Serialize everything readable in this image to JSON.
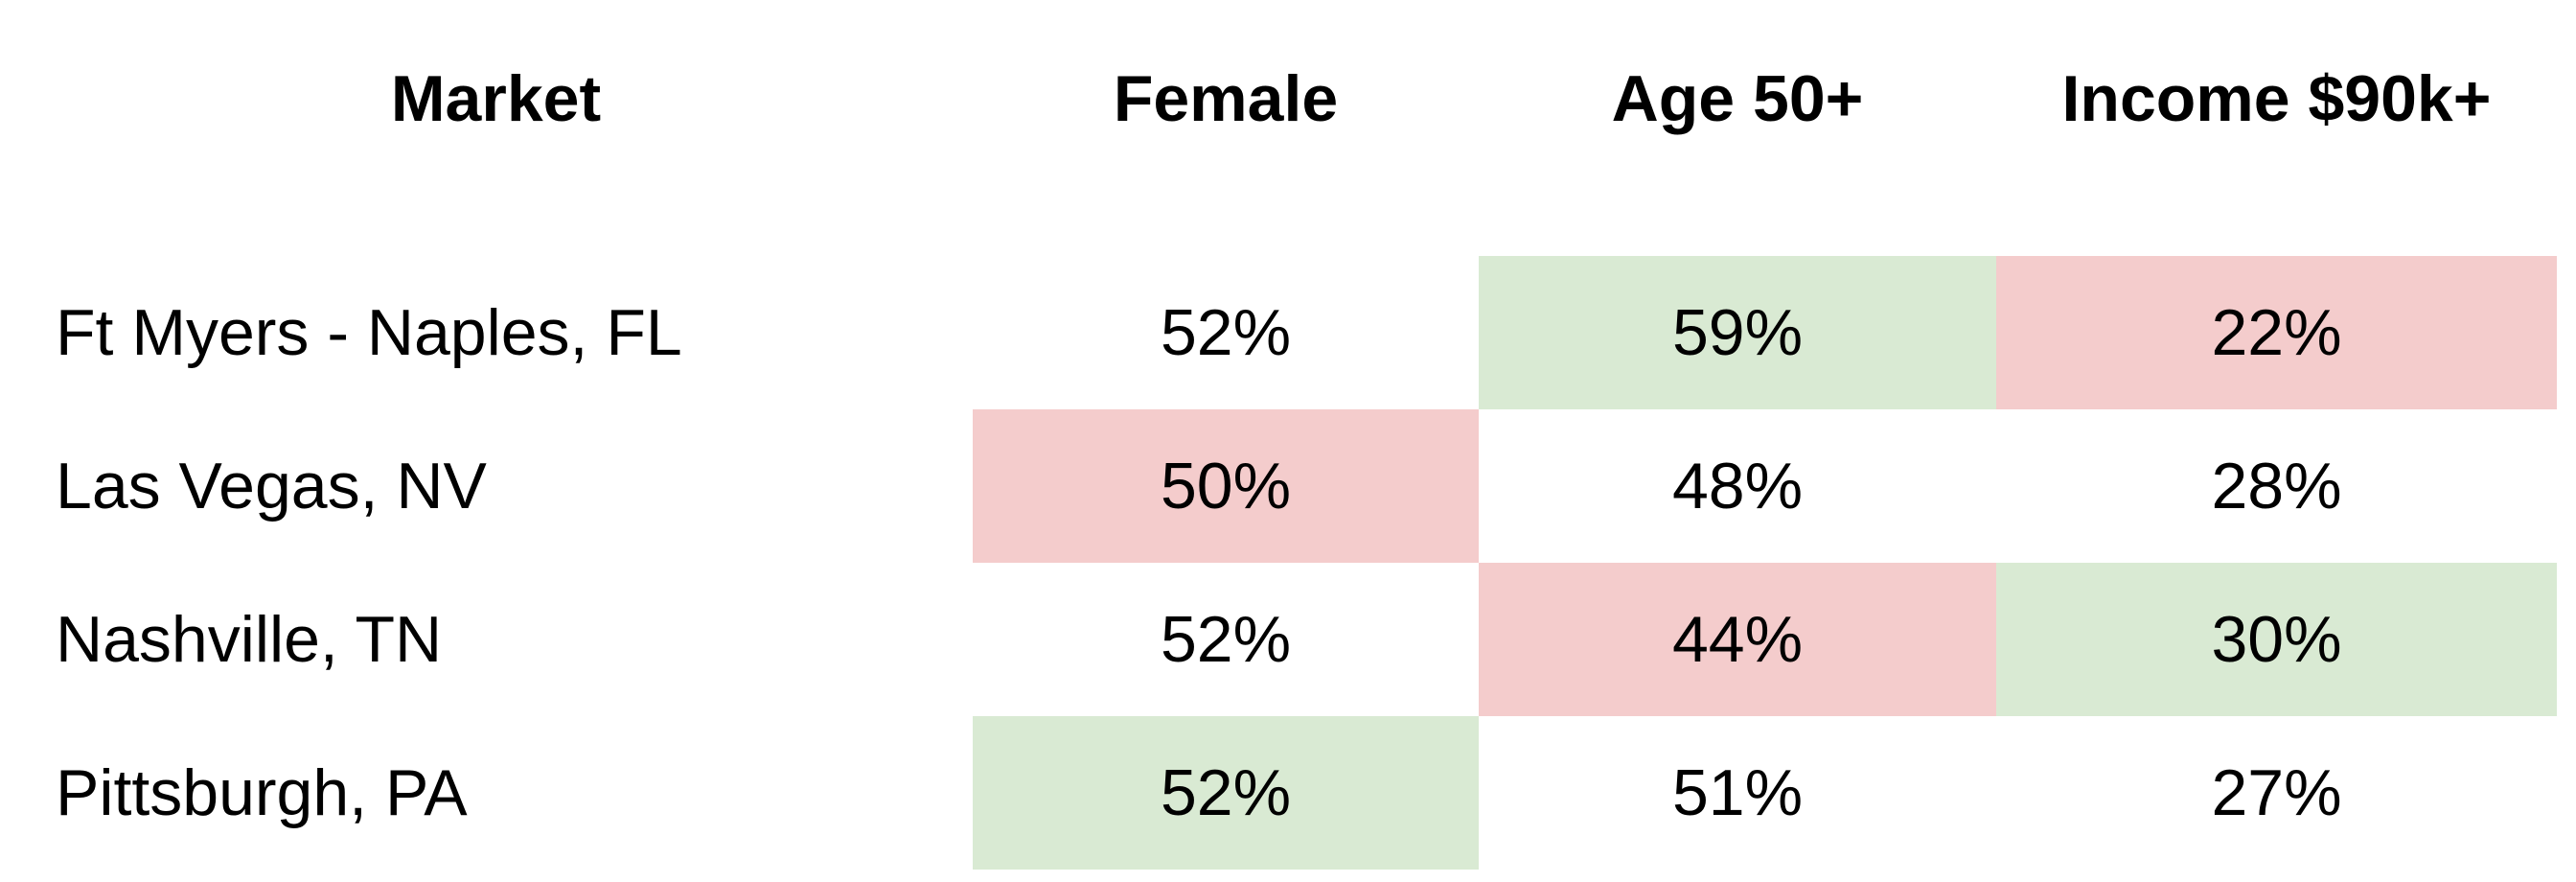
{
  "chart_data": {
    "type": "table",
    "columns": [
      "Market",
      "Female",
      "Age 50+",
      "Income $90k+"
    ],
    "rows": [
      {
        "market": "Ft Myers - Naples, FL",
        "values": [
          "52%",
          "59%",
          "22%"
        ],
        "highlight": [
          "none",
          "high",
          "low"
        ]
      },
      {
        "market": "Las Vegas, NV",
        "values": [
          "50%",
          "48%",
          "28%"
        ],
        "highlight": [
          "low",
          "none",
          "none"
        ]
      },
      {
        "market": "Nashville, TN",
        "values": [
          "52%",
          "44%",
          "30%"
        ],
        "highlight": [
          "none",
          "low",
          "high"
        ]
      },
      {
        "market": "Pittsburgh, PA",
        "values": [
          "52%",
          "51%",
          "27%"
        ],
        "highlight": [
          "high",
          "none",
          "none"
        ]
      }
    ],
    "colors": {
      "high": "#d9ead3",
      "low": "#f4cccc",
      "none": "#ffffff"
    }
  }
}
